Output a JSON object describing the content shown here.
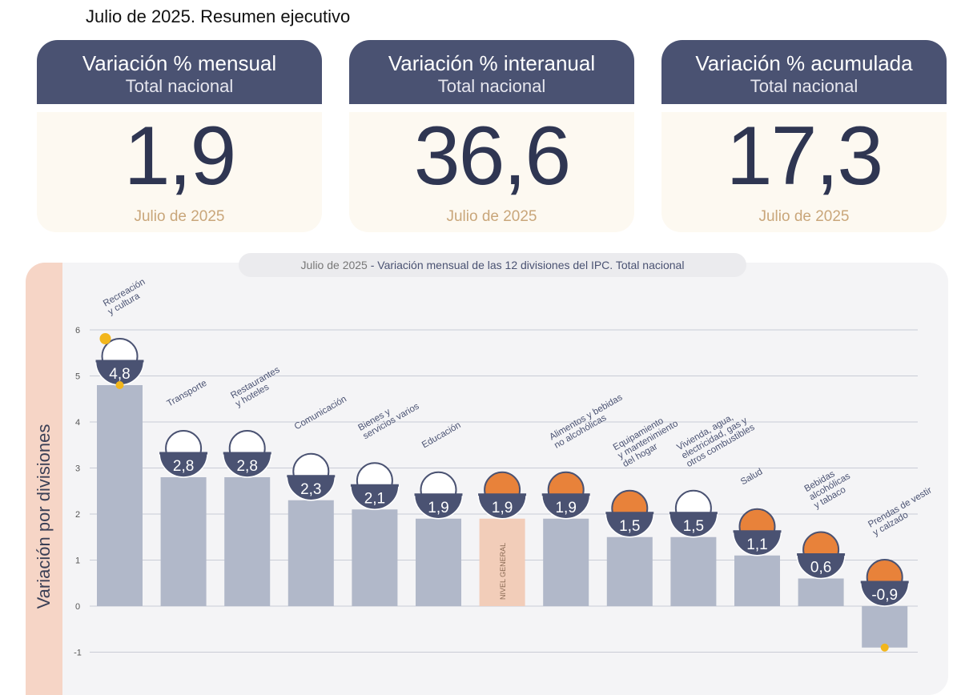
{
  "header": {
    "title": "Julio de 2025. Resumen ejecutivo"
  },
  "cards": [
    {
      "title": "Variación % mensual",
      "subtitle": "Total nacional",
      "value": "1,9",
      "date": "Julio de 2025"
    },
    {
      "title": "Variación % interanual",
      "subtitle": "Total nacional",
      "value": "36,6",
      "date": "Julio de 2025"
    },
    {
      "title": "Variación % acumulada",
      "subtitle": "Total nacional",
      "value": "17,3",
      "date": "Julio de 2025"
    }
  ],
  "colors": {
    "header_bg": "#4a5272",
    "bar": "#b1b8c9",
    "bar_highlight": "#f2cdb9",
    "badge": "#4a5272",
    "icon_orange": "#e8823a",
    "dot": "#f2b61c"
  },
  "chart_data": {
    "type": "bar",
    "title_date": "Julio de 2025",
    "title": "- Variación mensual de las 12 divisiones del IPC. Total nacional",
    "ylabel": "Variación por divisiones",
    "ylim": [
      -1,
      6
    ],
    "yticks": [
      "-1",
      "0",
      "1",
      "2",
      "3",
      "4",
      "5",
      "6"
    ],
    "grid": true,
    "categories": [
      {
        "label_lines": [
          "Recreación",
          "y cultura"
        ],
        "value": 4.8,
        "value_label": "4,8",
        "icon": "recreation-icon",
        "max_marker": true
      },
      {
        "label_lines": [
          "Transporte"
        ],
        "value": 2.8,
        "value_label": "2,8",
        "icon": "transport-icon"
      },
      {
        "label_lines": [
          "Restaurantes",
          "y hoteles"
        ],
        "value": 2.8,
        "value_label": "2,8",
        "icon": "restaurant-icon"
      },
      {
        "label_lines": [
          "Comunicación"
        ],
        "value": 2.3,
        "value_label": "2,3",
        "icon": "phone-icon"
      },
      {
        "label_lines": [
          "Bienes y",
          "servicios varios"
        ],
        "value": 2.1,
        "value_label": "2,1",
        "icon": "scissors-icon"
      },
      {
        "label_lines": [
          "Educación"
        ],
        "value": 1.9,
        "value_label": "1,9",
        "icon": "notebook-icon"
      },
      {
        "label_lines": [],
        "value": 1.9,
        "value_label": "1,9",
        "icon": "basket-icon",
        "highlight": true,
        "bar_text": "NIVEL GENERAL"
      },
      {
        "label_lines": [
          "Alimentos y bebidas",
          "no alcohólicas"
        ],
        "value": 1.9,
        "value_label": "1,9",
        "icon": "food-icon"
      },
      {
        "label_lines": [
          "Equipamiento",
          "y mantenimiento",
          "del hogar"
        ],
        "value": 1.5,
        "value_label": "1,5",
        "icon": "appliance-icon"
      },
      {
        "label_lines": [
          "Vivienda, agua,",
          "electricidad, gas y",
          "otros combustibles"
        ],
        "value": 1.5,
        "value_label": "1,5",
        "icon": "bulb-icon"
      },
      {
        "label_lines": [
          "Salud"
        ],
        "value": 1.1,
        "value_label": "1,1",
        "icon": "health-icon"
      },
      {
        "label_lines": [
          "Bebidas",
          "alcohólicas",
          "y tabaco"
        ],
        "value": 0.6,
        "value_label": "0,6",
        "icon": "bottle-icon"
      },
      {
        "label_lines": [
          "Prendas de vestir",
          "y calzado"
        ],
        "value": -0.9,
        "value_label": "-0,9",
        "icon": "clothing-icon",
        "min_marker": true
      }
    ]
  }
}
